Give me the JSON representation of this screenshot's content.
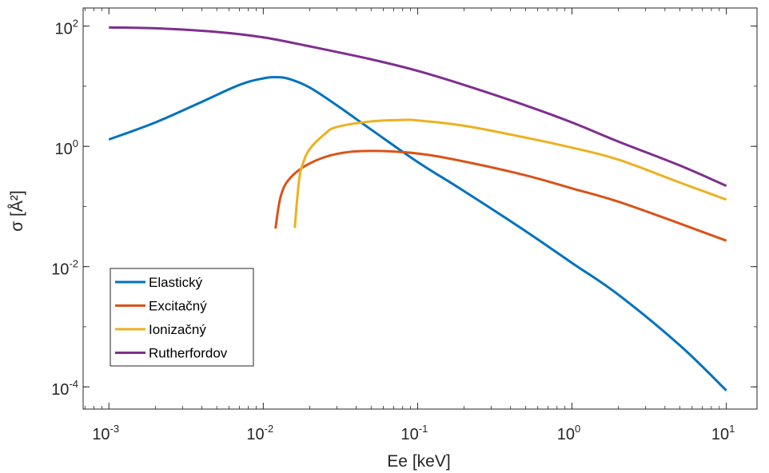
{
  "chart_data": {
    "type": "line",
    "xscale": "log",
    "yscale": "log",
    "xlim": [
      0.000681,
      15.8
    ],
    "ylim": [
      4.27e-05,
      200
    ],
    "xlabel": "Ee [keV]",
    "ylabel": "σ [Å²]",
    "xticks": [
      {
        "base": "10",
        "exp": "-3",
        "value": 0.001
      },
      {
        "base": "10",
        "exp": "-2",
        "value": 0.01
      },
      {
        "base": "10",
        "exp": "-1",
        "value": 0.1
      },
      {
        "base": "10",
        "exp": "0",
        "value": 1
      },
      {
        "base": "10",
        "exp": "1",
        "value": 10
      }
    ],
    "yticks": [
      {
        "base": "10",
        "exp": "-4",
        "value": 0.0001
      },
      {
        "base": "10",
        "exp": "-2",
        "value": 0.01
      },
      {
        "base": "10",
        "exp": "0",
        "value": 1
      },
      {
        "base": "10",
        "exp": "2",
        "value": 100
      }
    ],
    "grid": false,
    "legend_position": "bottom-left",
    "series": [
      {
        "name": "Elastický",
        "color": "#0072BD",
        "x": [
          0.001,
          0.002,
          0.004,
          0.007,
          0.01,
          0.0125,
          0.015,
          0.02,
          0.03,
          0.05,
          0.1,
          0.2,
          0.5,
          1,
          2,
          5,
          10
        ],
        "y": [
          1.3,
          2.5,
          5.5,
          10.5,
          13.5,
          14.1,
          13.0,
          9.5,
          4.8,
          1.9,
          0.55,
          0.18,
          0.039,
          0.0115,
          0.0034,
          0.00049,
          8.7e-05
        ]
      },
      {
        "name": "Excitačný",
        "color": "#D95319",
        "x": [
          0.012,
          0.013,
          0.015,
          0.02,
          0.03,
          0.05,
          0.1,
          0.2,
          0.5,
          1,
          2,
          5,
          10
        ],
        "y": [
          0.043,
          0.15,
          0.3,
          0.52,
          0.75,
          0.84,
          0.76,
          0.56,
          0.33,
          0.2,
          0.12,
          0.052,
          0.027
        ]
      },
      {
        "name": "Ionizačný",
        "color": "#EDB120",
        "x": [
          0.016,
          0.017,
          0.018,
          0.02,
          0.025,
          0.03,
          0.05,
          0.08,
          0.1,
          0.2,
          0.5,
          1,
          2,
          5,
          10
        ],
        "y": [
          0.044,
          0.25,
          0.5,
          0.9,
          1.6,
          2.1,
          2.6,
          2.75,
          2.7,
          2.2,
          1.4,
          0.95,
          0.6,
          0.25,
          0.13
        ]
      },
      {
        "name": "Rutherfordov",
        "color": "#7E2F8E",
        "x": [
          0.001,
          0.002,
          0.005,
          0.01,
          0.02,
          0.05,
          0.1,
          0.2,
          0.5,
          1,
          2,
          5,
          10
        ],
        "y": [
          95,
          92,
          80,
          65,
          46,
          28,
          18,
          10.5,
          4.8,
          2.5,
          1.2,
          0.48,
          0.22
        ]
      }
    ]
  }
}
